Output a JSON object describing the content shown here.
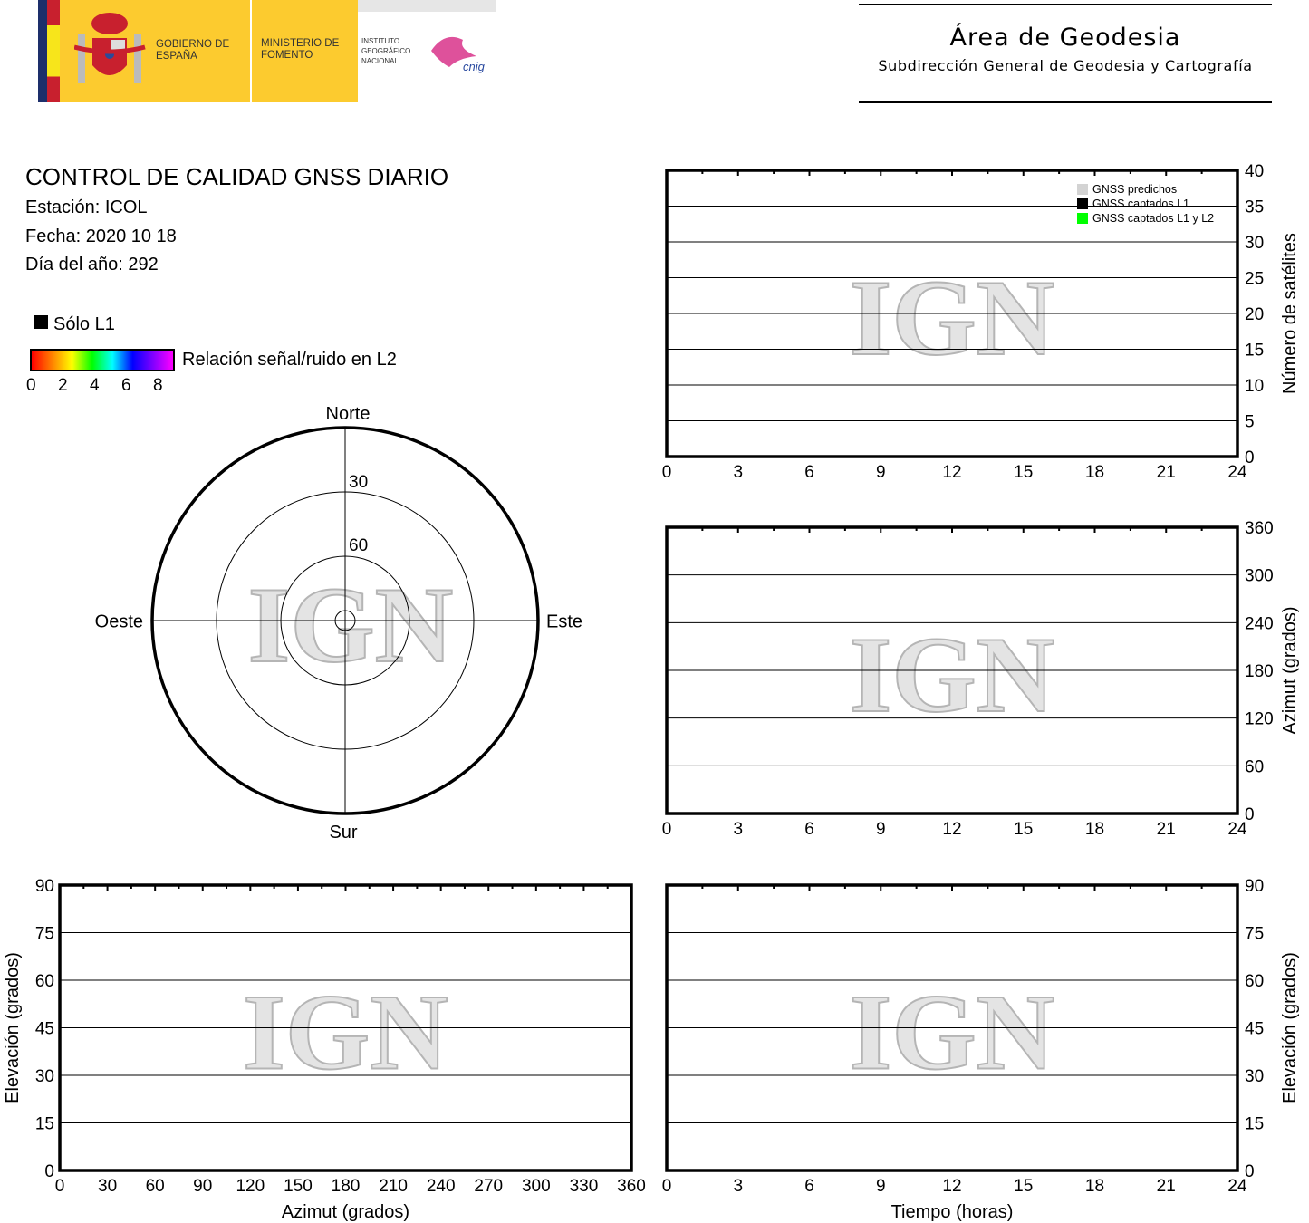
{
  "header": {
    "logo": {
      "gobierno": "GOBIERNO DE ESPAÑA",
      "ministerio": "MINISTERIO DE FOMENTO",
      "instituto": "INSTITUTO GEOGRÁFICO NACIONAL",
      "cnig": "cnig"
    },
    "area_title": "Área de Geodesia",
    "area_subtitle": "Subdirección General de Geodesia y Cartografía"
  },
  "info": {
    "title": "CONTROL DE CALIDAD GNSS DIARIO",
    "station": "Estación: ICOL",
    "date": "Fecha: 2020 10 18",
    "doy": "Día del año: 292"
  },
  "legend": {
    "only_l1": "Sólo L1",
    "snr_label": "Relación señal/ruido en L2",
    "snr_ticks": [
      "0",
      "2",
      "4",
      "6",
      "8"
    ]
  },
  "watermark": "IGN",
  "colors": {
    "frame": "#000000",
    "predicted": "#d3d3d3",
    "l1": "#000000",
    "l1l2": "#00ff00"
  },
  "chart_data": [
    {
      "type": "polar",
      "name": "skyplot",
      "directions": {
        "north": "Norte",
        "south": "Sur",
        "east": "Este",
        "west": "Oeste"
      },
      "elevation_rings": [
        "30",
        "60"
      ],
      "series": []
    },
    {
      "type": "line",
      "name": "satellites",
      "xlabel": "",
      "ylabel": "Número de satélites",
      "xlim": [
        0,
        24
      ],
      "ylim": [
        0,
        40
      ],
      "xticks": [
        "0",
        "3",
        "6",
        "9",
        "12",
        "15",
        "18",
        "21",
        "24"
      ],
      "yticks": [
        "0",
        "5",
        "10",
        "15",
        "20",
        "25",
        "30",
        "35",
        "40"
      ],
      "grid": true,
      "legend_position": "top-right",
      "legend": [
        "GNSS predichos",
        "GNSS captados L1",
        "GNSS captados L1 y L2"
      ],
      "series": []
    },
    {
      "type": "scatter",
      "name": "azimuth-time",
      "xlabel": "",
      "ylabel": "Azimut (grados)",
      "xlim": [
        0,
        24
      ],
      "ylim": [
        0,
        360
      ],
      "xticks": [
        "0",
        "3",
        "6",
        "9",
        "12",
        "15",
        "18",
        "21",
        "24"
      ],
      "yticks": [
        "0",
        "60",
        "120",
        "180",
        "240",
        "300",
        "360"
      ],
      "grid": true,
      "series": []
    },
    {
      "type": "scatter",
      "name": "elevation-azimuth",
      "xlabel": "Azimut (grados)",
      "ylabel": "Elevación (grados)",
      "xlim": [
        0,
        360
      ],
      "ylim": [
        0,
        90
      ],
      "xticks": [
        "0",
        "30",
        "60",
        "90",
        "120",
        "150",
        "180",
        "210",
        "240",
        "270",
        "300",
        "330",
        "360"
      ],
      "yticks": [
        "0",
        "15",
        "30",
        "45",
        "60",
        "75",
        "90"
      ],
      "grid": true,
      "series": []
    },
    {
      "type": "scatter",
      "name": "elevation-time",
      "xlabel": "Tiempo (horas)",
      "ylabel": "Elevación (grados)",
      "xlim": [
        0,
        24
      ],
      "ylim": [
        0,
        90
      ],
      "xticks": [
        "0",
        "3",
        "6",
        "9",
        "12",
        "15",
        "18",
        "21",
        "24"
      ],
      "yticks": [
        "0",
        "15",
        "30",
        "45",
        "60",
        "75",
        "90"
      ],
      "grid": true,
      "series": []
    }
  ]
}
